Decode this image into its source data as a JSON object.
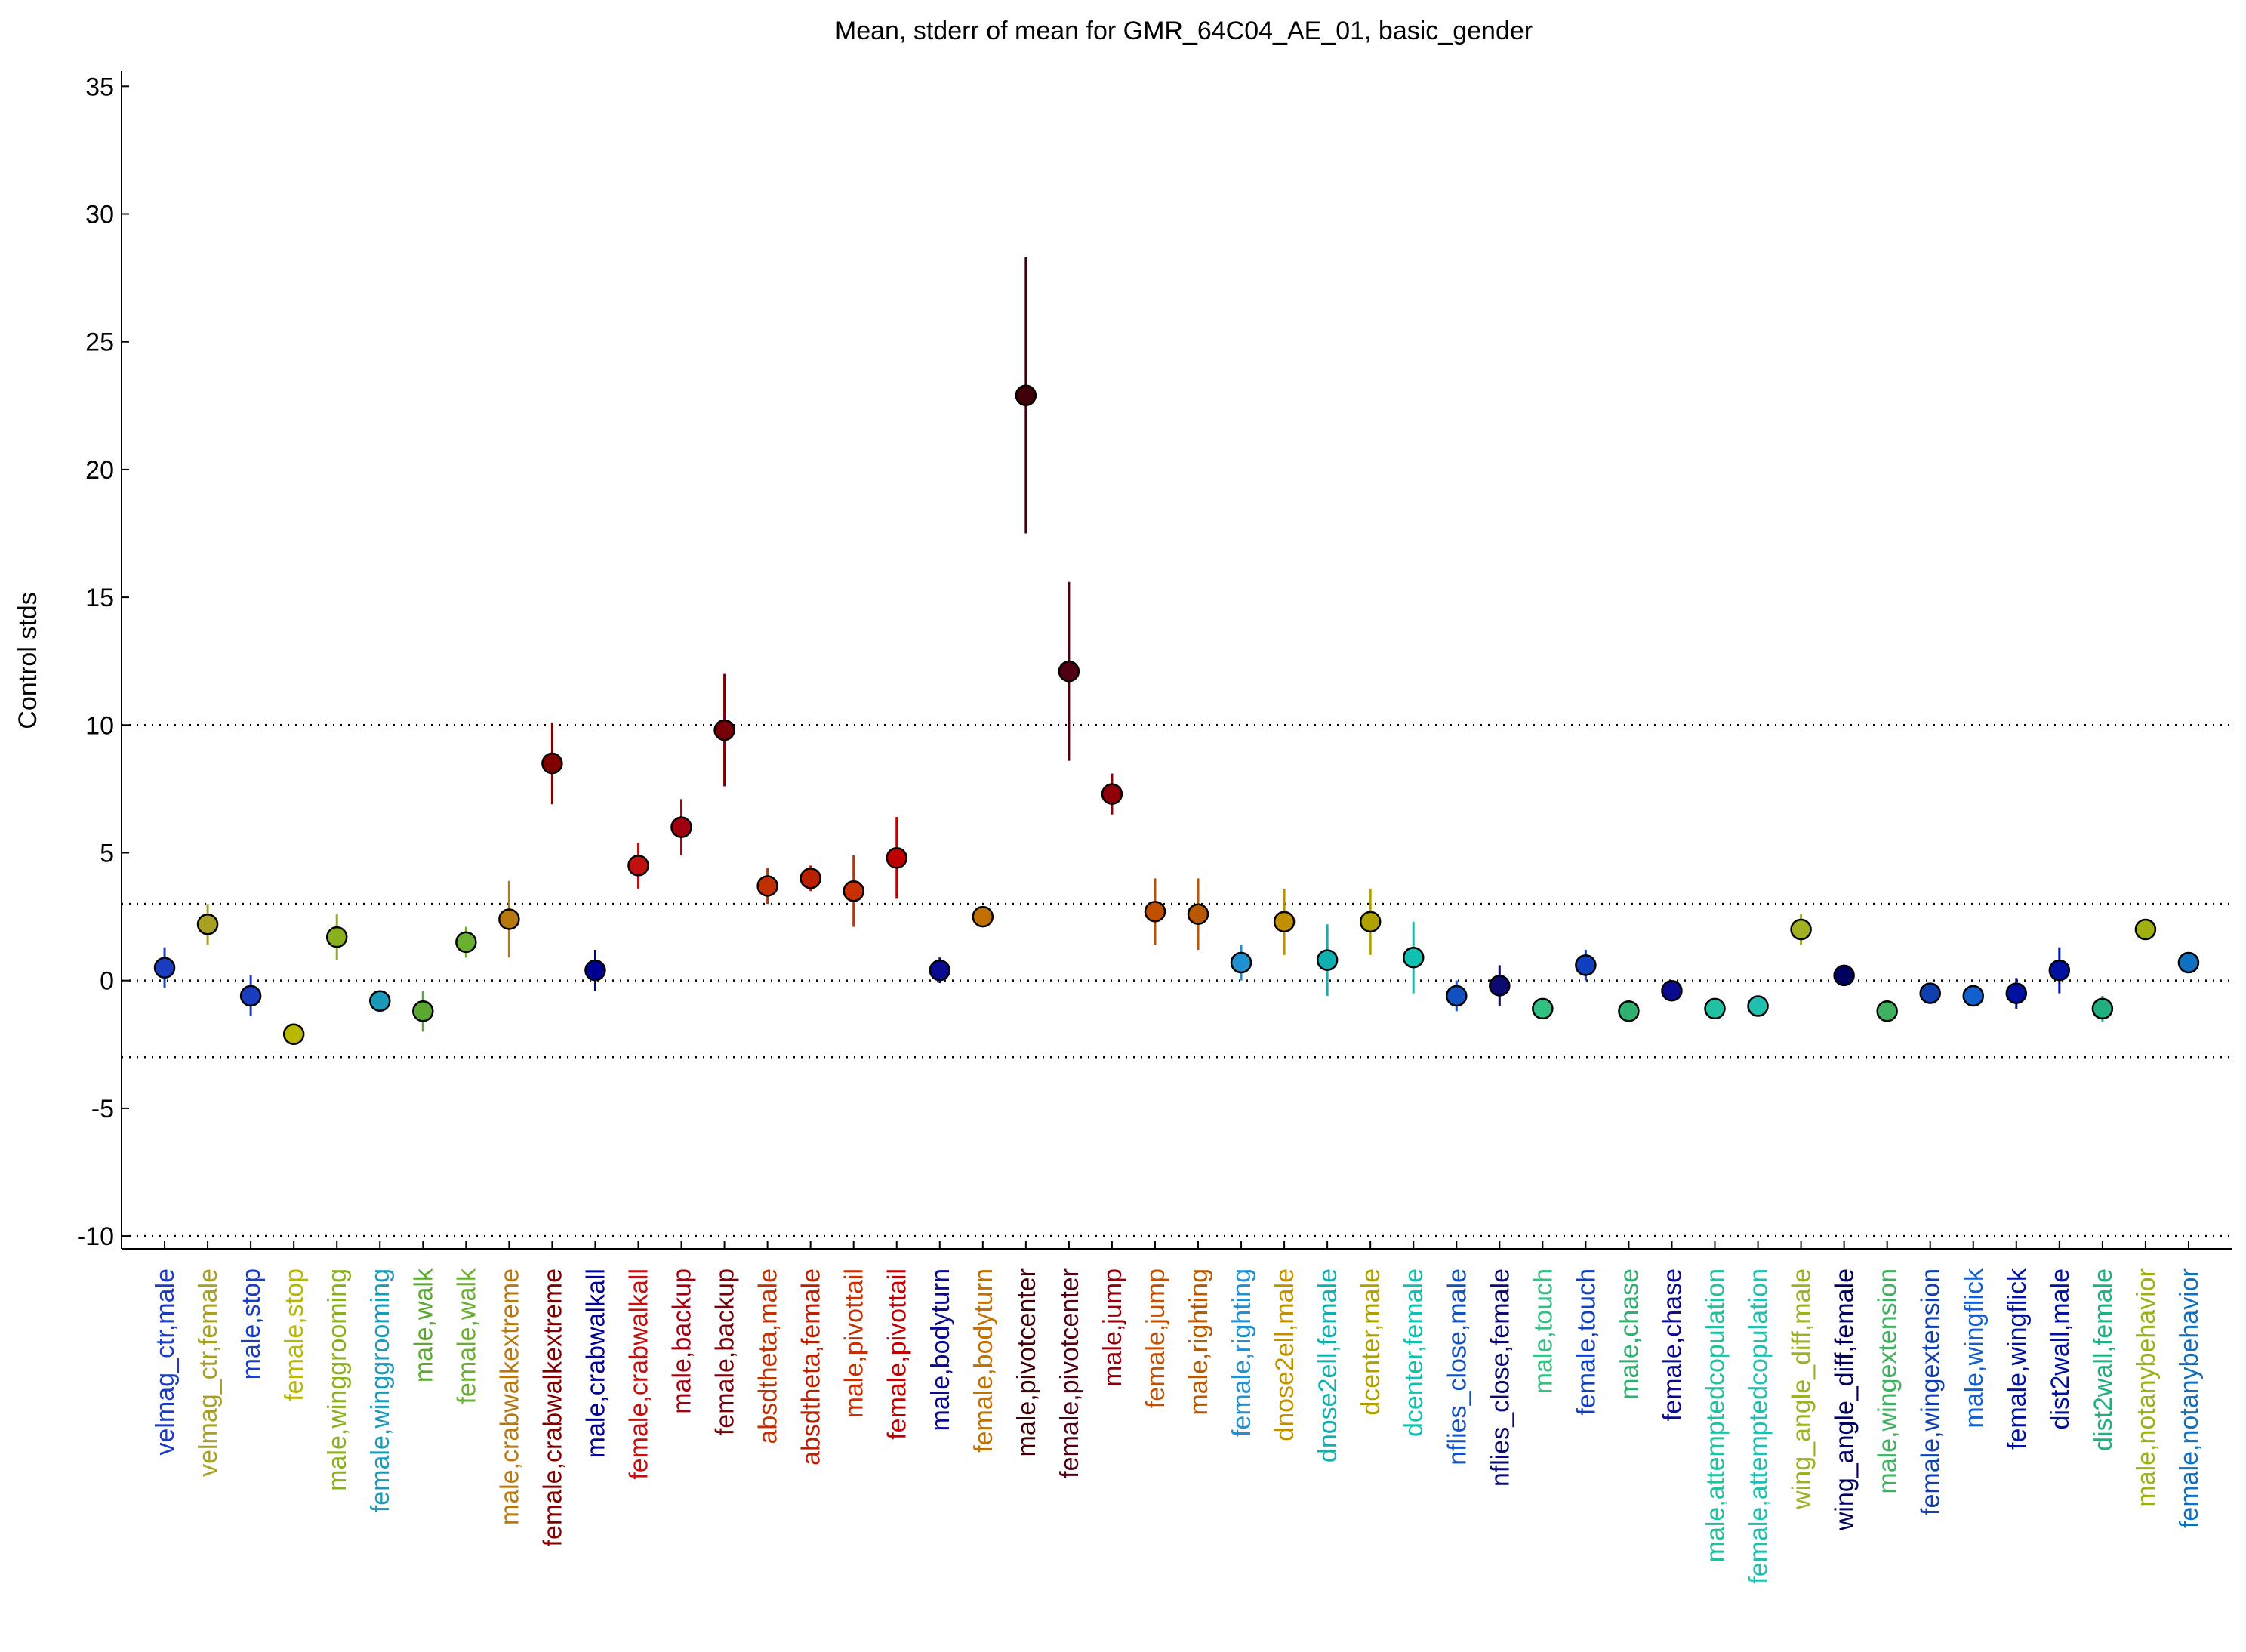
{
  "chart_data": {
    "type": "errorbar",
    "title": "Mean, stderr of mean for GMR_64C04_AE_01, basic_gender",
    "y_label": "Control stds",
    "categories": [
      "velmag_ctr,male",
      "velmag_ctr,female",
      "male,stop",
      "female,stop",
      "male,winggrooming",
      "female,winggrooming",
      "male,walk",
      "female,walk",
      "male,crabwalkextreme",
      "female,crabwalkextreme",
      "male,crabwalkall",
      "female,crabwalkall",
      "male,backup",
      "female,backup",
      "absdtheta,male",
      "absdtheta,female",
      "male,pivottail",
      "female,pivottail",
      "male,bodyturn",
      "female,bodyturn",
      "male,pivotcenter",
      "female,pivotcenter",
      "male,jump",
      "female,jump",
      "male,righting",
      "female,righting",
      "dnose2ell,male",
      "dnose2ell,female",
      "dcenter,male",
      "dcenter,female",
      "nflies_close,male",
      "nflies_close,female",
      "male,touch",
      "female,touch",
      "male,chase",
      "female,chase",
      "male,attemptedcopulation",
      "female,attemptedcopulation",
      "wing_angle_diff,male",
      "wing_angle_diff,female",
      "male,wingextension",
      "female,wingextension",
      "male,wingflick",
      "female,wingflick",
      "dist2wall,male",
      "dist2wall,female",
      "male,notanybehavior",
      "female,notanybehavior"
    ],
    "values": [
      0.5,
      2.2,
      -0.6,
      -2.1,
      1.7,
      -0.8,
      -1.2,
      1.5,
      2.4,
      8.5,
      0.4,
      4.5,
      6.0,
      9.8,
      3.7,
      4.0,
      3.5,
      4.8,
      0.4,
      2.5,
      22.9,
      12.1,
      7.3,
      2.7,
      2.6,
      0.7,
      2.3,
      0.8,
      2.3,
      0.9,
      -0.6,
      -0.2,
      -1.1,
      0.6,
      -1.2,
      -0.4,
      -1.1,
      -1.0,
      2.0,
      0.2,
      -1.2,
      -0.5,
      -0.6,
      -0.5,
      0.4,
      -1.1,
      2.0,
      0.7
    ],
    "errors": [
      0.8,
      0.8,
      0.8,
      0.4,
      0.9,
      0.2,
      0.8,
      0.6,
      1.5,
      1.6,
      0.8,
      0.9,
      1.1,
      2.2,
      0.7,
      0.5,
      1.4,
      1.6,
      0.5,
      0.3,
      5.4,
      3.5,
      0.8,
      1.3,
      1.4,
      0.7,
      1.3,
      1.4,
      1.3,
      1.4,
      0.6,
      0.8,
      0.2,
      0.6,
      0.1,
      0.3,
      0.1,
      0.1,
      0.6,
      0.3,
      0.1,
      0.2,
      0.3,
      0.6,
      0.9,
      0.5,
      0.2,
      0.3
    ],
    "colors": [
      "#1a3cc0",
      "#a8a020",
      "#1a3cc0",
      "#b8b800",
      "#8ab020",
      "#1a9ab8",
      "#5aa830",
      "#6ab030",
      "#b87810",
      "#800000",
      "#000090",
      "#c01010",
      "#a00010",
      "#780008",
      "#c03000",
      "#b82000",
      "#c83000",
      "#c00000",
      "#0a0a90",
      "#c07000",
      "#400008",
      "#500010",
      "#900008",
      "#c05000",
      "#b85800",
      "#2090d0",
      "#c09000",
      "#10b0b0",
      "#b0a000",
      "#10c0b0",
      "#1050c0",
      "#0a0a70",
      "#30c080",
      "#1040c0",
      "#30b070",
      "#0a0a90",
      "#20c0a0",
      "#20c0b0",
      "#a0b020",
      "#000060",
      "#40b060",
      "#1040b0",
      "#1060d0",
      "#0010a0",
      "#0010a0",
      "#20b080",
      "#a0b010",
      "#1070c0"
    ],
    "ylim": [
      -10.5,
      35.6
    ],
    "yticks": [
      -10,
      -5,
      0,
      5,
      10,
      15,
      20,
      25,
      30,
      35
    ],
    "hlines": [
      -10,
      -3,
      0,
      3,
      10
    ]
  }
}
